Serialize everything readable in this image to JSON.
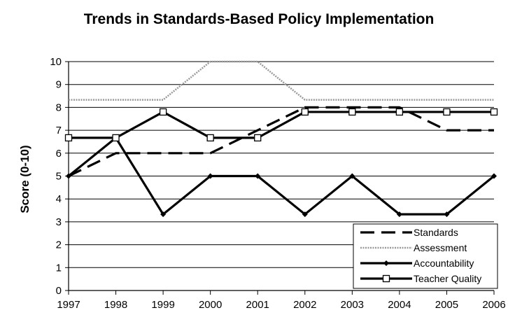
{
  "chart_data": {
    "type": "line",
    "title": "Trends in Standards-Based Policy Implementation",
    "xlabel": "",
    "ylabel": "Score (0-10)",
    "x": [
      "1997",
      "1998",
      "1999",
      "2000",
      "2001",
      "2002",
      "2003",
      "2004",
      "2005",
      "2006"
    ],
    "yticks": [
      "0",
      "1",
      "2",
      "3",
      "4",
      "5",
      "6",
      "7",
      "8",
      "9",
      "10"
    ],
    "ylim": [
      0,
      10
    ],
    "grid": true,
    "legend_position": "bottom-right",
    "series": [
      {
        "name": "Standards",
        "values": [
          5,
          6,
          6,
          6,
          7,
          8,
          8,
          8,
          7,
          7
        ],
        "color": "#000000",
        "style": "dashed"
      },
      {
        "name": "Assessment",
        "values": [
          8.33,
          8.33,
          8.33,
          10,
          10,
          8.33,
          8.33,
          8.33,
          8.33,
          8.33
        ],
        "color": "#9a9a9a",
        "style": "dotted"
      },
      {
        "name": "Accountability",
        "values": [
          5,
          6.67,
          3.33,
          5,
          5,
          3.33,
          5,
          3.33,
          3.33,
          5
        ],
        "color": "#000000",
        "style": "solid-diamond"
      },
      {
        "name": "Teacher Quality",
        "values": [
          6.67,
          6.67,
          7.8,
          6.67,
          6.67,
          7.8,
          7.8,
          7.8,
          7.8,
          7.8
        ],
        "color": "#000000",
        "style": "solid-square"
      }
    ]
  }
}
